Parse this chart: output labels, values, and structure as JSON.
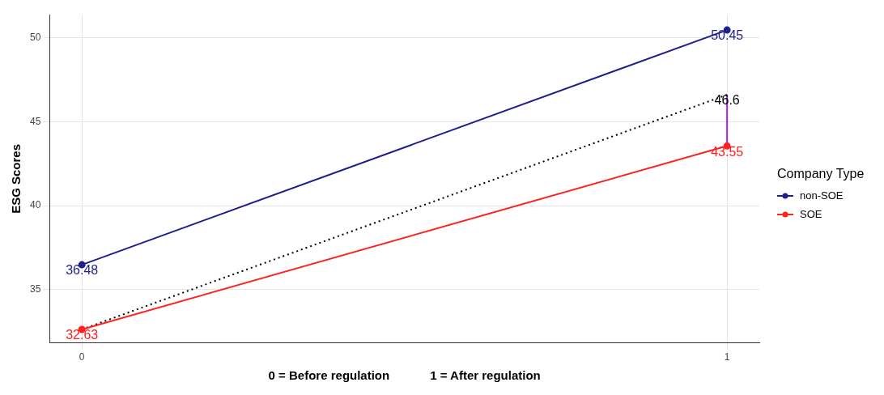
{
  "chart_data": {
    "type": "line",
    "xlabel": "0 = Before regulation            1 = After regulation",
    "ylabel": "ESG Scores",
    "legend_title": "Company Type",
    "legend": "right",
    "grid": true,
    "marker": "circle",
    "x": [
      0,
      1
    ],
    "xlim": [
      -0.05,
      1.05
    ],
    "xticks": [
      0,
      1
    ],
    "ylim": [
      31.83,
      51.36
    ],
    "yticks": [
      35,
      40,
      45,
      50
    ],
    "series": [
      {
        "name": "non-SOE",
        "color": "#1f1f8c",
        "values": [
          36.48,
          50.45
        ],
        "value_labels": [
          "36.48",
          "50.45"
        ]
      },
      {
        "name": "SOE",
        "color": "#ff2020",
        "values": [
          32.63,
          43.55
        ],
        "value_labels": [
          "32.63",
          "43.55"
        ]
      },
      {
        "color": "#000000",
        "values": [
          32.63,
          46.6
        ],
        "value_labels": [
          null,
          "46.6"
        ],
        "line_style": "dotted",
        "marker": "none"
      },
      {
        "color": "#a020f0",
        "x": [
          1,
          1
        ],
        "values": [
          43.55,
          46.6
        ],
        "marker": "none"
      }
    ]
  }
}
